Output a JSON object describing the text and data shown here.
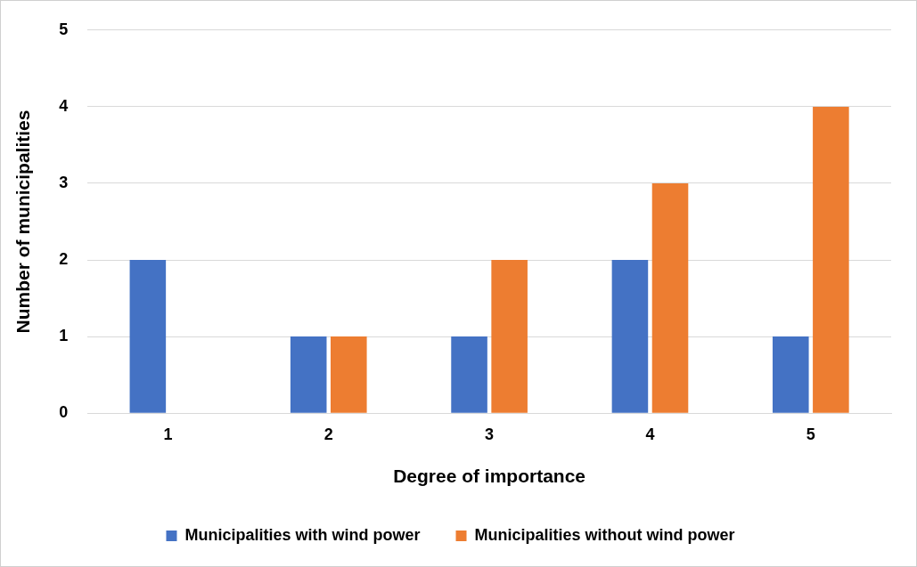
{
  "chart_data": {
    "type": "bar",
    "xlabel": "Degree of importance",
    "ylabel": "Number of municipalities",
    "categories": [
      "1",
      "2",
      "3",
      "4",
      "5"
    ],
    "series": [
      {
        "name": "Municipalities with wind power",
        "color": "#4472c4",
        "values": [
          2,
          1,
          1,
          2,
          1
        ]
      },
      {
        "name": "Municipalities without wind power",
        "color": "#ed7d31",
        "values": [
          0,
          1,
          2,
          3,
          4
        ]
      }
    ],
    "ylim": [
      0,
      5
    ],
    "yticks": [
      0,
      1,
      2,
      3,
      4,
      5
    ],
    "grid": "y",
    "legend": "bottom"
  }
}
